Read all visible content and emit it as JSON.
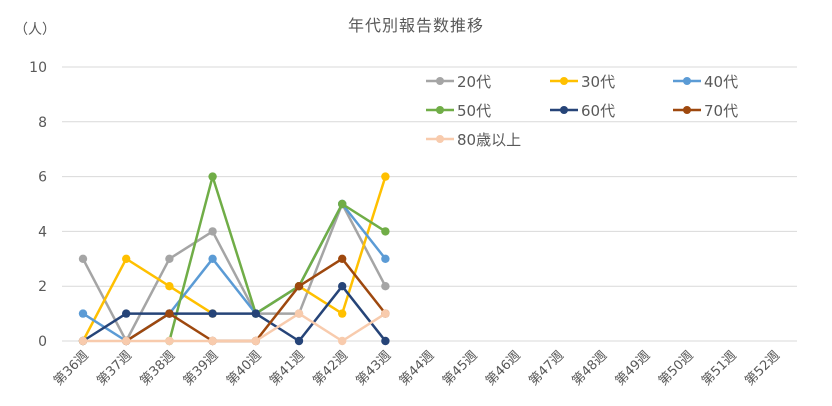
{
  "chart_data": {
    "type": "line",
    "title": "年代別報告数推移",
    "ylabel": "（人）",
    "xlabel": "",
    "ylim": [
      0,
      10
    ],
    "yticks": [
      0,
      2,
      4,
      6,
      8,
      10
    ],
    "grid": true,
    "legend_position": "upper-right-inside",
    "categories": [
      "第36週",
      "第37週",
      "第38週",
      "第39週",
      "第40週",
      "第41週",
      "第42週",
      "第43週",
      "第44週",
      "第45週",
      "第46週",
      "第47週",
      "第48週",
      "第49週",
      "第50週",
      "第51週",
      "第52週"
    ],
    "series": [
      {
        "name": "20代",
        "color": "#A5A5A5",
        "values": [
          3,
          0,
          3,
          4,
          1,
          1,
          5,
          2,
          null,
          null,
          null,
          null,
          null,
          null,
          null,
          null,
          null
        ]
      },
      {
        "name": "30代",
        "color": "#FFC000",
        "values": [
          0,
          3,
          2,
          1,
          null,
          2,
          1,
          6,
          null,
          null,
          null,
          null,
          null,
          null,
          null,
          null,
          null
        ]
      },
      {
        "name": "40代",
        "color": "#5B9BD5",
        "values": [
          1,
          0,
          1,
          3,
          1,
          2,
          5,
          3,
          null,
          null,
          null,
          null,
          null,
          null,
          null,
          null,
          null
        ]
      },
      {
        "name": "50代",
        "color": "#70AD47",
        "values": [
          null,
          null,
          0,
          6,
          1,
          2,
          5,
          4,
          null,
          null,
          null,
          null,
          null,
          null,
          null,
          null,
          null
        ]
      },
      {
        "name": "60代",
        "color": "#264478",
        "values": [
          0,
          1,
          1,
          1,
          1,
          0,
          2,
          0,
          null,
          null,
          null,
          null,
          null,
          null,
          null,
          null,
          null
        ]
      },
      {
        "name": "70代",
        "color": "#9E480E",
        "values": [
          null,
          0,
          1,
          0,
          0,
          2,
          3,
          1,
          null,
          null,
          null,
          null,
          null,
          null,
          null,
          null,
          null
        ]
      },
      {
        "name": "80歳以上",
        "color": "#F8CBAD",
        "values": [
          0,
          0,
          0,
          0,
          0,
          1,
          0,
          1,
          null,
          null,
          null,
          null,
          null,
          null,
          null,
          null,
          null
        ]
      }
    ]
  },
  "style": {
    "gridline_color": "#D9D9D9",
    "text_color": "#595959"
  }
}
